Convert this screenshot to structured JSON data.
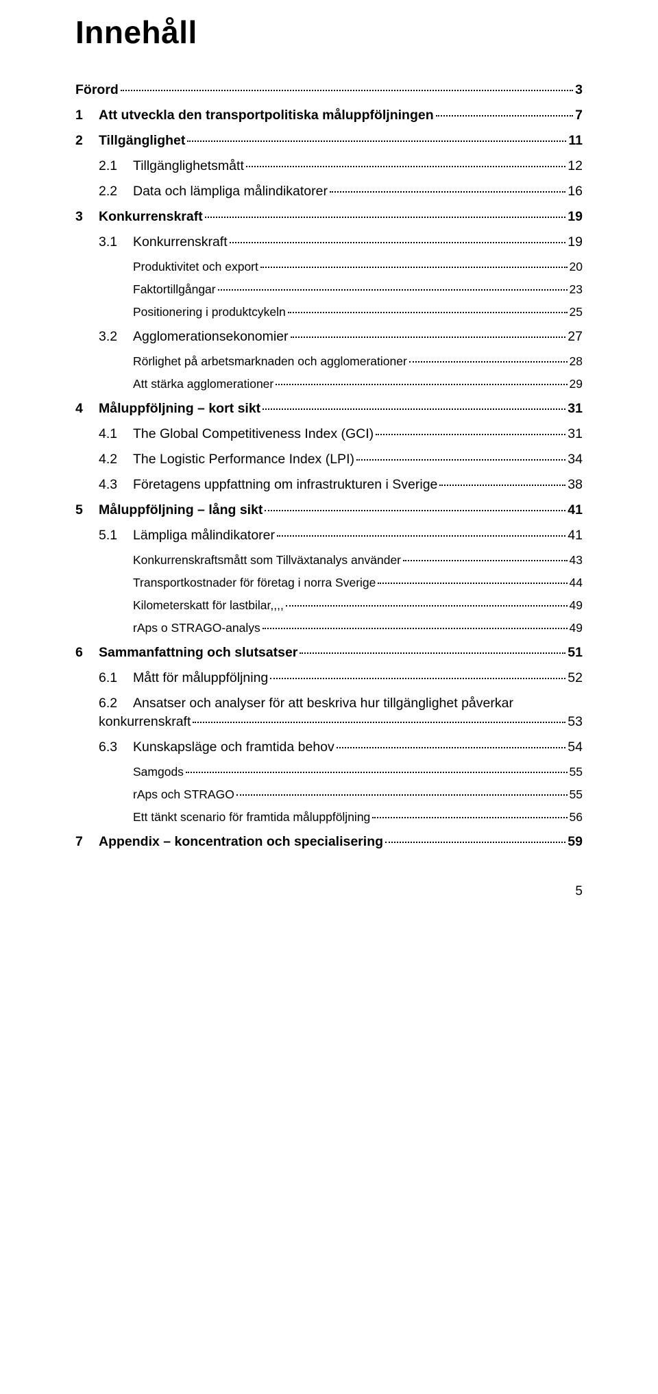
{
  "title": "Innehåll",
  "page_number": "5",
  "colors": {
    "text": "#000000",
    "background": "#ffffff"
  },
  "fonts": {
    "family": "Arial",
    "title_size": 46,
    "lvl0_size": 19.5,
    "lvl1_size": 19.5,
    "lvl2_size": 17.5
  },
  "entries": [
    {
      "level": 0,
      "num": "",
      "label": "Förord",
      "page": "3"
    },
    {
      "level": 0,
      "num": "1",
      "label": "Att utveckla den transportpolitiska måluppföljningen",
      "page": "7"
    },
    {
      "level": 0,
      "num": "2",
      "label": "Tillgänglighet",
      "page": "11"
    },
    {
      "level": 1,
      "num": "2.1",
      "label": "Tillgänglighetsmått",
      "page": "12"
    },
    {
      "level": 1,
      "num": "2.2",
      "label": "Data och lämpliga målindikatorer",
      "page": "16"
    },
    {
      "level": 0,
      "num": "3",
      "label": "Konkurrenskraft",
      "page": "19"
    },
    {
      "level": 1,
      "num": "3.1",
      "label": "Konkurrenskraft",
      "page": "19"
    },
    {
      "level": 2,
      "num": "",
      "label": "Produktivitet och export",
      "page": "20"
    },
    {
      "level": 2,
      "num": "",
      "label": "Faktortillgångar",
      "page": "23"
    },
    {
      "level": 2,
      "num": "",
      "label": "Positionering i produktcykeln",
      "page": "25"
    },
    {
      "level": 1,
      "num": "3.2",
      "label": "Agglomerationsekonomier",
      "page": "27"
    },
    {
      "level": 2,
      "num": "",
      "label": "Rörlighet på arbetsmarknaden och agglomerationer",
      "page": "28"
    },
    {
      "level": 2,
      "num": "",
      "label": "Att stärka agglomerationer",
      "page": "29"
    },
    {
      "level": 0,
      "num": "4",
      "label": "Måluppföljning – kort sikt",
      "page": "31"
    },
    {
      "level": 1,
      "num": "4.1",
      "label": "The Global Competitiveness Index (GCI)",
      "page": "31"
    },
    {
      "level": 1,
      "num": "4.2",
      "label": "The Logistic Performance Index (LPI)",
      "page": "34"
    },
    {
      "level": 1,
      "num": "4.3",
      "label": "Företagens uppfattning om infrastrukturen i Sverige",
      "page": "38"
    },
    {
      "level": 0,
      "num": "5",
      "label": "Måluppföljning – lång sikt",
      "page": "41"
    },
    {
      "level": 1,
      "num": "5.1",
      "label": "Lämpliga målindikatorer",
      "page": "41"
    },
    {
      "level": 2,
      "num": "",
      "label": "Konkurrenskraftsmått som Tillväxtanalys använder",
      "page": "43"
    },
    {
      "level": 2,
      "num": "",
      "label": "Transportkostnader för företag i norra Sverige",
      "page": "44"
    },
    {
      "level": 2,
      "num": "",
      "label": "Kilometerskatt för lastbilar,,,,",
      "page": "49"
    },
    {
      "level": 2,
      "num": "",
      "label": "rAps o STRAGO-analys",
      "page": "49"
    },
    {
      "level": 0,
      "num": "6",
      "label": "Sammanfattning och slutsatser",
      "page": "51"
    },
    {
      "level": 1,
      "num": "6.1",
      "label": "Mått för måluppföljning",
      "page": "52"
    },
    {
      "level": 1,
      "num": "6.2",
      "label": "Ansatser och analyser för att beskriva hur tillgänglighet påverkar",
      "page": "",
      "no_dots": true
    },
    {
      "level": "1cont",
      "num": "",
      "label": "konkurrenskraft",
      "page": "53"
    },
    {
      "level": 1,
      "num": "6.3",
      "label": "Kunskapsläge och framtida behov",
      "page": "54"
    },
    {
      "level": 2,
      "num": "",
      "label": "Samgods",
      "page": "55"
    },
    {
      "level": 2,
      "num": "",
      "label": "rAps och STRAGO",
      "page": "55"
    },
    {
      "level": 2,
      "num": "",
      "label": "Ett tänkt scenario för framtida måluppföljning",
      "page": "56"
    },
    {
      "level": 0,
      "num": "7",
      "label": "Appendix – koncentration och specialisering",
      "page": "59"
    }
  ]
}
